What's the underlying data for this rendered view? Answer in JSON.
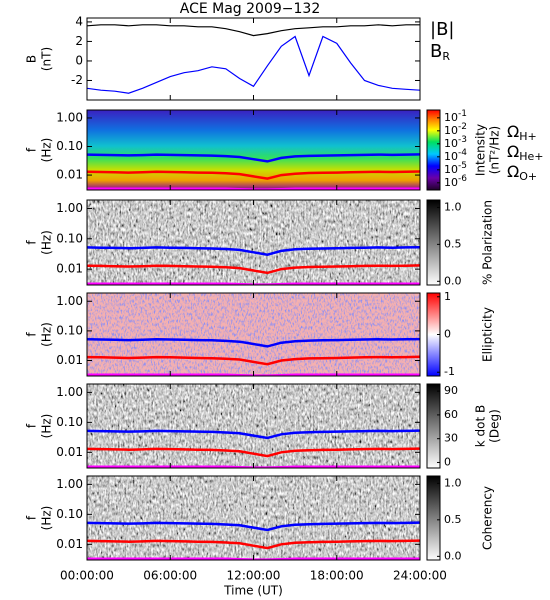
{
  "chart_data": [
    {
      "type": "line",
      "title": "ACE Mag 2009−132",
      "ylabel": [
        "B",
        "(nT)"
      ],
      "xlim": [
        0,
        24
      ],
      "ylim": [
        -4.0,
        4.4
      ],
      "yticks": [
        -2,
        0,
        2,
        4
      ],
      "x": [
        0,
        1,
        2,
        3,
        4,
        5,
        6,
        7,
        8,
        9,
        10,
        11,
        12,
        13,
        14,
        15,
        16,
        17,
        18,
        19,
        20,
        21,
        22,
        23,
        24
      ],
      "series": [
        {
          "name": "|B|",
          "color": "#000000",
          "values": [
            3.6,
            3.7,
            3.7,
            3.6,
            3.7,
            3.7,
            3.6,
            3.6,
            3.5,
            3.5,
            3.3,
            3.0,
            2.6,
            2.8,
            3.1,
            3.3,
            3.4,
            3.5,
            3.5,
            3.6,
            3.6,
            3.7,
            3.6,
            3.7,
            3.7
          ]
        },
        {
          "name": "B",
          "subscript": "R",
          "color": "#0000ff",
          "values": [
            -2.8,
            -3.0,
            -3.1,
            -3.3,
            -2.8,
            -2.2,
            -1.6,
            -1.2,
            -1.0,
            -0.6,
            -0.8,
            -1.8,
            -2.6,
            -0.5,
            1.5,
            2.5,
            -1.5,
            2.5,
            1.8,
            -0.2,
            -2.0,
            -2.5,
            -2.8,
            -2.9,
            -3.0
          ]
        }
      ]
    },
    {
      "type": "spectrogram",
      "ylabel": [
        "f",
        "(Hz)"
      ],
      "xlim": [
        0,
        24
      ],
      "ylog": true,
      "ylim": [
        0.003,
        1.9
      ],
      "yticks": [
        {
          "value": 1,
          "label": "1.00"
        },
        {
          "value": 0.1,
          "label": "0.10"
        },
        {
          "value": 0.01,
          "label": "0.01"
        }
      ],
      "colormap": "rainbow",
      "clog": true,
      "clim": [
        2.8e-07,
        0.4
      ],
      "cticks": [
        {
          "value": 0.1,
          "label": "10",
          "exponent": "-1"
        },
        {
          "value": 0.01,
          "label": "10",
          "exponent": "-2"
        },
        {
          "value": 0.001,
          "label": "10",
          "exponent": "-3"
        },
        {
          "value": 0.0001,
          "label": "10",
          "exponent": "-4"
        },
        {
          "value": 1e-05,
          "label": "10",
          "exponent": "-5"
        },
        {
          "value": 1e-06,
          "label": "10",
          "exponent": "-6"
        }
      ],
      "clabel": [
        "Intensity",
        "(nT²/Hz)"
      ],
      "x": [
        0,
        1,
        2,
        3,
        4,
        5,
        6,
        7,
        8,
        9,
        10,
        11,
        12,
        13,
        14,
        15,
        16,
        17,
        18,
        19,
        20,
        21,
        22,
        23,
        24
      ],
      "series": [
        {
          "name": "Ω",
          "subscript": "H+",
          "color": "#0000ff",
          "values": [
            0.052,
            0.051,
            0.05,
            0.049,
            0.05,
            0.052,
            0.051,
            0.05,
            0.049,
            0.048,
            0.046,
            0.043,
            0.036,
            0.03,
            0.04,
            0.045,
            0.047,
            0.048,
            0.049,
            0.05,
            0.051,
            0.052,
            0.051,
            0.052,
            0.053
          ]
        },
        {
          "name": "Ω",
          "subscript": "He+",
          "color": "#ff0000",
          "values": [
            0.013,
            0.0128,
            0.0125,
            0.0122,
            0.0125,
            0.013,
            0.0128,
            0.0125,
            0.0122,
            0.012,
            0.0115,
            0.0108,
            0.009,
            0.0075,
            0.01,
            0.0112,
            0.0118,
            0.012,
            0.0122,
            0.0125,
            0.0128,
            0.013,
            0.0128,
            0.013,
            0.0133
          ]
        },
        {
          "name": "Ω",
          "subscript": "O+",
          "color": "#ff00ff",
          "values": [
            0.0033,
            0.0033,
            0.0033,
            0.0033,
            0.0033,
            0.0033,
            0.0033,
            0.0033,
            0.0033,
            0.0033,
            0.0033,
            0.0032,
            0.0031,
            0.0031,
            0.0032,
            0.0033,
            0.0033,
            0.0033,
            0.0033,
            0.0033,
            0.0033,
            0.0033,
            0.0033,
            0.0033,
            0.0033
          ]
        }
      ]
    },
    {
      "type": "spectrogram",
      "ylabel": [
        "f",
        "(Hz)"
      ],
      "xlim": [
        0,
        24
      ],
      "ylog": true,
      "ylim": [
        0.003,
        1.9
      ],
      "yticks": [
        {
          "value": 1,
          "label": "1.00"
        },
        {
          "value": 0.1,
          "label": "0.10"
        },
        {
          "value": 0.01,
          "label": "0.01"
        }
      ],
      "colormap": "gray",
      "clim": [
        -0.05,
        1.1
      ],
      "cticks": [
        {
          "value": 0,
          "label": "0.0"
        },
        {
          "value": 0.5,
          "label": "0.5"
        },
        {
          "value": 1,
          "label": "1.0"
        }
      ],
      "clabel": [
        "% Polarization"
      ],
      "x": [
        0,
        1,
        2,
        3,
        4,
        5,
        6,
        7,
        8,
        9,
        10,
        11,
        12,
        13,
        14,
        15,
        16,
        17,
        18,
        19,
        20,
        21,
        22,
        23,
        24
      ],
      "series": [
        {
          "color": "#0000ff",
          "values": [
            0.052,
            0.051,
            0.05,
            0.049,
            0.05,
            0.052,
            0.051,
            0.05,
            0.049,
            0.048,
            0.046,
            0.043,
            0.036,
            0.03,
            0.04,
            0.045,
            0.047,
            0.048,
            0.049,
            0.05,
            0.051,
            0.052,
            0.051,
            0.052,
            0.053
          ]
        },
        {
          "color": "#ff0000",
          "values": [
            0.013,
            0.0128,
            0.0125,
            0.0122,
            0.0125,
            0.013,
            0.0128,
            0.0125,
            0.0122,
            0.012,
            0.0115,
            0.0108,
            0.009,
            0.0075,
            0.01,
            0.0112,
            0.0118,
            0.012,
            0.0122,
            0.0125,
            0.0128,
            0.013,
            0.0128,
            0.013,
            0.0133
          ]
        },
        {
          "color": "#ff00ff",
          "values": [
            0.0033,
            0.0033,
            0.0033,
            0.0033,
            0.0033,
            0.0033,
            0.0033,
            0.0033,
            0.0033,
            0.0033,
            0.0033,
            0.0032,
            0.0031,
            0.0031,
            0.0032,
            0.0033,
            0.0033,
            0.0033,
            0.0033,
            0.0033,
            0.0033,
            0.0033,
            0.0033,
            0.0033,
            0.0033
          ]
        }
      ]
    },
    {
      "type": "spectrogram",
      "ylabel": [
        "f",
        "(Hz)"
      ],
      "xlim": [
        0,
        24
      ],
      "ylog": true,
      "ylim": [
        0.003,
        1.9
      ],
      "yticks": [
        {
          "value": 1,
          "label": "1.00"
        },
        {
          "value": 0.1,
          "label": "0.10"
        },
        {
          "value": 0.01,
          "label": "0.01"
        }
      ],
      "colormap": "bwr",
      "clim": [
        -1.1,
        1.1
      ],
      "cticks": [
        -1,
        0,
        1
      ],
      "clabel": [
        "Ellipticity"
      ],
      "x": [
        0,
        1,
        2,
        3,
        4,
        5,
        6,
        7,
        8,
        9,
        10,
        11,
        12,
        13,
        14,
        15,
        16,
        17,
        18,
        19,
        20,
        21,
        22,
        23,
        24
      ],
      "series": [
        {
          "color": "#0000ff",
          "values": [
            0.052,
            0.051,
            0.05,
            0.049,
            0.05,
            0.052,
            0.051,
            0.05,
            0.049,
            0.048,
            0.046,
            0.043,
            0.036,
            0.03,
            0.04,
            0.045,
            0.047,
            0.048,
            0.049,
            0.05,
            0.051,
            0.052,
            0.051,
            0.052,
            0.053
          ]
        },
        {
          "color": "#ff0000",
          "values": [
            0.013,
            0.0128,
            0.0125,
            0.0122,
            0.0125,
            0.013,
            0.0128,
            0.0125,
            0.0122,
            0.012,
            0.0115,
            0.0108,
            0.009,
            0.0075,
            0.01,
            0.0112,
            0.0118,
            0.012,
            0.0122,
            0.0125,
            0.0128,
            0.013,
            0.0128,
            0.013,
            0.0133
          ]
        },
        {
          "color": "#ff00ff",
          "values": [
            0.0033,
            0.0033,
            0.0033,
            0.0033,
            0.0033,
            0.0033,
            0.0033,
            0.0033,
            0.0033,
            0.0033,
            0.0033,
            0.0032,
            0.0031,
            0.0031,
            0.0032,
            0.0033,
            0.0033,
            0.0033,
            0.0033,
            0.0033,
            0.0033,
            0.0033,
            0.0033,
            0.0033,
            0.0033
          ]
        }
      ]
    },
    {
      "type": "spectrogram",
      "ylabel": [
        "f",
        "(Hz)"
      ],
      "xlim": [
        0,
        24
      ],
      "ylog": true,
      "ylim": [
        0.003,
        1.9
      ],
      "yticks": [
        {
          "value": 1,
          "label": "1.00"
        },
        {
          "value": 0.1,
          "label": "0.10"
        },
        {
          "value": 0.01,
          "label": "0.01"
        }
      ],
      "colormap": "gray",
      "clim": [
        -7,
        99
      ],
      "cticks": [
        0,
        30,
        60,
        90
      ],
      "clabel": [
        "k dot B",
        "(Deg)"
      ],
      "x": [
        0,
        1,
        2,
        3,
        4,
        5,
        6,
        7,
        8,
        9,
        10,
        11,
        12,
        13,
        14,
        15,
        16,
        17,
        18,
        19,
        20,
        21,
        22,
        23,
        24
      ],
      "series": [
        {
          "color": "#0000ff",
          "values": [
            0.052,
            0.051,
            0.05,
            0.049,
            0.05,
            0.052,
            0.051,
            0.05,
            0.049,
            0.048,
            0.046,
            0.043,
            0.036,
            0.03,
            0.04,
            0.045,
            0.047,
            0.048,
            0.049,
            0.05,
            0.051,
            0.052,
            0.051,
            0.052,
            0.053
          ]
        },
        {
          "color": "#ff0000",
          "values": [
            0.013,
            0.0128,
            0.0125,
            0.0122,
            0.0125,
            0.013,
            0.0128,
            0.0125,
            0.0122,
            0.012,
            0.0115,
            0.0108,
            0.009,
            0.0075,
            0.01,
            0.0112,
            0.0118,
            0.012,
            0.0122,
            0.0125,
            0.0128,
            0.013,
            0.0128,
            0.013,
            0.0133
          ]
        },
        {
          "color": "#ff00ff",
          "values": [
            0.0033,
            0.0033,
            0.0033,
            0.0033,
            0.0033,
            0.0033,
            0.0033,
            0.0033,
            0.0033,
            0.0033,
            0.0033,
            0.0032,
            0.0031,
            0.0031,
            0.0032,
            0.0033,
            0.0033,
            0.0033,
            0.0033,
            0.0033,
            0.0033,
            0.0033,
            0.0033,
            0.0033,
            0.0033
          ]
        }
      ]
    },
    {
      "type": "spectrogram",
      "ylabel": [
        "f",
        "(Hz)"
      ],
      "xlim": [
        0,
        24
      ],
      "ylog": true,
      "ylim": [
        0.003,
        1.9
      ],
      "yticks": [
        {
          "value": 1,
          "label": "1.00"
        },
        {
          "value": 0.1,
          "label": "0.10"
        },
        {
          "value": 0.01,
          "label": "0.01"
        }
      ],
      "colormap": "gray",
      "clim": [
        -0.05,
        1.1
      ],
      "cticks": [
        {
          "value": 0,
          "label": "0.0"
        },
        {
          "value": 0.5,
          "label": "0.5"
        },
        {
          "value": 1,
          "label": "1.0"
        }
      ],
      "clabel": [
        "Coherency"
      ],
      "xlabel": "Time (UT)",
      "xticks": [
        {
          "value": 0,
          "label": "00:00:00"
        },
        {
          "value": 6,
          "label": "06:00:00"
        },
        {
          "value": 12,
          "label": "12:00:00"
        },
        {
          "value": 18,
          "label": "18:00:00"
        },
        {
          "value": 24,
          "label": "24:00:00"
        }
      ],
      "x": [
        0,
        1,
        2,
        3,
        4,
        5,
        6,
        7,
        8,
        9,
        10,
        11,
        12,
        13,
        14,
        15,
        16,
        17,
        18,
        19,
        20,
        21,
        22,
        23,
        24
      ],
      "series": [
        {
          "color": "#0000ff",
          "values": [
            0.052,
            0.051,
            0.05,
            0.049,
            0.05,
            0.052,
            0.051,
            0.05,
            0.049,
            0.048,
            0.046,
            0.043,
            0.036,
            0.03,
            0.04,
            0.045,
            0.047,
            0.048,
            0.049,
            0.05,
            0.051,
            0.052,
            0.051,
            0.052,
            0.053
          ]
        },
        {
          "color": "#ff0000",
          "values": [
            0.013,
            0.0128,
            0.0125,
            0.0122,
            0.0125,
            0.013,
            0.0128,
            0.0125,
            0.0122,
            0.012,
            0.0115,
            0.0108,
            0.009,
            0.0075,
            0.01,
            0.0112,
            0.0118,
            0.012,
            0.0122,
            0.0125,
            0.0128,
            0.013,
            0.0128,
            0.013,
            0.0133
          ]
        },
        {
          "color": "#ff00ff",
          "values": [
            0.0033,
            0.0033,
            0.0033,
            0.0033,
            0.0033,
            0.0033,
            0.0033,
            0.0033,
            0.0033,
            0.0033,
            0.0033,
            0.0032,
            0.0031,
            0.0031,
            0.0032,
            0.0033,
            0.0033,
            0.0033,
            0.0033,
            0.0033,
            0.0033,
            0.0033,
            0.0033,
            0.0033,
            0.0033
          ]
        }
      ]
    }
  ]
}
